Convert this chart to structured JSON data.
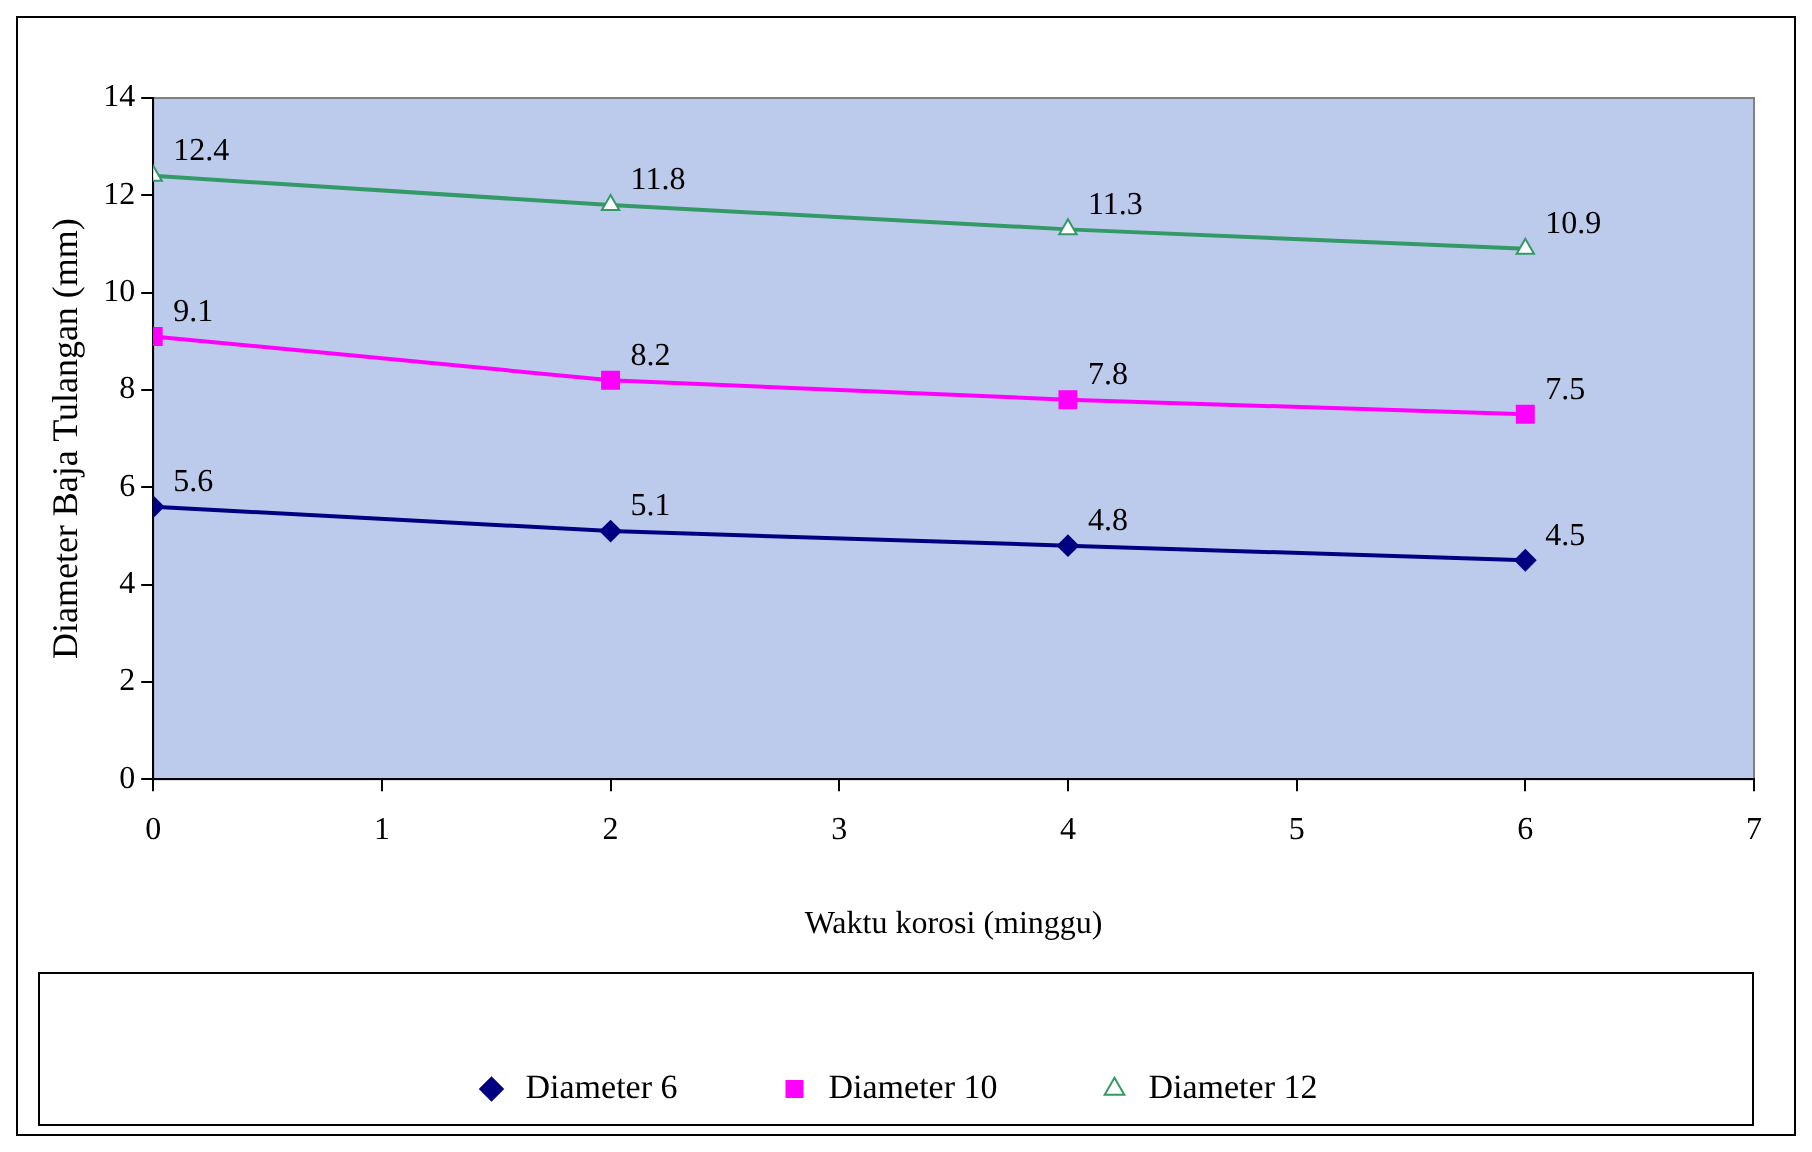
{
  "chart_data": {
    "type": "line",
    "xlabel": "Waktu korosi (minggu)",
    "ylabel": "Diameter Baja Tulangan (mm)",
    "x": [
      0,
      2,
      4,
      6
    ],
    "series": [
      {
        "name": "Diameter 6",
        "color": "#000080",
        "marker": "diamond",
        "values": [
          5.6,
          5.1,
          4.8,
          4.5
        ]
      },
      {
        "name": "Diameter 10",
        "color": "#ff00ff",
        "marker": "square",
        "values": [
          9.1,
          8.2,
          7.8,
          7.5
        ]
      },
      {
        "name": "Diameter 12",
        "color": "#339966",
        "marker": "triangle",
        "values": [
          12.4,
          11.8,
          11.3,
          10.9
        ]
      }
    ],
    "xlim": [
      0,
      7
    ],
    "xticks": [
      0,
      1,
      2,
      3,
      4,
      5,
      6,
      7
    ],
    "ylim": [
      0,
      14
    ],
    "yticks": [
      0,
      2,
      4,
      6,
      8,
      10,
      12,
      14
    ],
    "grid": false,
    "legend": "bottom",
    "data_labels": true,
    "line_style": "solid"
  }
}
